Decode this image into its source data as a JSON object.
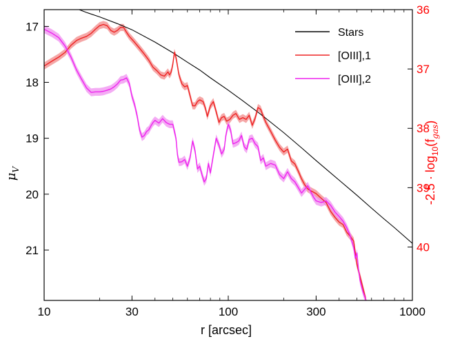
{
  "chart_data": {
    "type": "line",
    "xlabel": "r [arcsec]",
    "x_scale": "log",
    "xlim": [
      10,
      1000
    ],
    "x_ticks": [
      10,
      30,
      100,
      300,
      1000
    ],
    "x_tick_labels": [
      "10",
      "30",
      "100",
      "300",
      "1000"
    ],
    "ylabel_left_main": "μ",
    "ylabel_left_sub": "V",
    "ylim_left": [
      16.7,
      21.9
    ],
    "y_left_inverted": true,
    "y_left_ticks": [
      17,
      18,
      19,
      20,
      21
    ],
    "ylabel_right_prefix": "-2.5 · log",
    "ylabel_right_sub1": "10",
    "ylabel_right_mid": "(f",
    "ylabel_right_sub2": "gas",
    "ylabel_right_suffix": ")",
    "ylim_right": [
      36,
      40.9
    ],
    "y_right_inverted": true,
    "y_right_ticks": [
      36,
      37,
      38,
      39,
      40
    ],
    "y_right_color": "#ff0000",
    "legend_position": "upper-right",
    "series": [
      {
        "name": "Stars",
        "color": "#000000",
        "axis": "left",
        "band": false,
        "points": [
          [
            15.5,
            16.7
          ],
          [
            17,
            16.75
          ],
          [
            20,
            16.83
          ],
          [
            25,
            16.95
          ],
          [
            30,
            17.06
          ],
          [
            40,
            17.28
          ],
          [
            50,
            17.47
          ],
          [
            60,
            17.64
          ],
          [
            70,
            17.78
          ],
          [
            80,
            17.92
          ],
          [
            100,
            18.14
          ],
          [
            120,
            18.33
          ],
          [
            150,
            18.57
          ],
          [
            200,
            18.9
          ],
          [
            250,
            19.17
          ],
          [
            300,
            19.4
          ],
          [
            400,
            19.75
          ],
          [
            500,
            20.02
          ],
          [
            600,
            20.25
          ],
          [
            700,
            20.44
          ],
          [
            800,
            20.6
          ],
          [
            1000,
            20.88
          ]
        ]
      },
      {
        "name": "[OIII],1",
        "color": "#ee2222",
        "band_color": "#f28a8a",
        "axis": "right",
        "band": true,
        "band_half_width": 0.06,
        "points": [
          [
            10,
            36.95
          ],
          [
            11,
            36.87
          ],
          [
            12,
            36.8
          ],
          [
            13,
            36.72
          ],
          [
            14,
            36.6
          ],
          [
            15,
            36.52
          ],
          [
            16,
            36.48
          ],
          [
            17,
            36.45
          ],
          [
            18,
            36.4
          ],
          [
            19,
            36.33
          ],
          [
            20,
            36.27
          ],
          [
            21,
            36.25
          ],
          [
            22,
            36.27
          ],
          [
            23,
            36.35
          ],
          [
            24,
            36.38
          ],
          [
            25,
            36.35
          ],
          [
            26,
            36.3
          ],
          [
            27,
            36.3
          ],
          [
            28,
            36.38
          ],
          [
            29,
            36.45
          ],
          [
            30,
            36.5
          ],
          [
            31,
            36.55
          ],
          [
            33,
            36.65
          ],
          [
            35,
            36.75
          ],
          [
            37,
            36.85
          ],
          [
            39,
            36.97
          ],
          [
            41,
            37.03
          ],
          [
            43,
            37.1
          ],
          [
            45,
            37.12
          ],
          [
            47,
            37.05
          ],
          [
            48,
            37.1
          ],
          [
            49,
            37.05
          ],
          [
            50,
            36.92
          ],
          [
            51,
            36.72
          ],
          [
            52,
            36.8
          ],
          [
            54,
            37.1
          ],
          [
            56,
            37.25
          ],
          [
            58,
            37.3
          ],
          [
            60,
            37.28
          ],
          [
            62,
            37.45
          ],
          [
            64,
            37.62
          ],
          [
            66,
            37.62
          ],
          [
            68,
            37.55
          ],
          [
            70,
            37.52
          ],
          [
            73,
            37.55
          ],
          [
            75,
            37.65
          ],
          [
            77,
            37.8
          ],
          [
            80,
            37.62
          ],
          [
            83,
            37.55
          ],
          [
            86,
            37.72
          ],
          [
            89,
            37.9
          ],
          [
            92,
            37.82
          ],
          [
            95,
            37.8
          ],
          [
            98,
            37.88
          ],
          [
            102,
            37.85
          ],
          [
            106,
            37.78
          ],
          [
            110,
            37.75
          ],
          [
            115,
            37.85
          ],
          [
            120,
            37.82
          ],
          [
            125,
            37.85
          ],
          [
            130,
            37.78
          ],
          [
            135,
            37.95
          ],
          [
            140,
            37.83
          ],
          [
            145,
            37.65
          ],
          [
            150,
            37.68
          ],
          [
            155,
            37.8
          ],
          [
            160,
            37.9
          ],
          [
            170,
            38.05
          ],
          [
            180,
            38.2
          ],
          [
            190,
            38.32
          ],
          [
            200,
            38.4
          ],
          [
            210,
            38.35
          ],
          [
            220,
            38.55
          ],
          [
            230,
            38.6
          ],
          [
            240,
            38.72
          ],
          [
            250,
            38.85
          ],
          [
            260,
            38.95
          ],
          [
            270,
            39.02
          ],
          [
            280,
            39.05
          ],
          [
            300,
            39.1
          ],
          [
            320,
            39.18
          ],
          [
            340,
            39.25
          ],
          [
            360,
            39.4
          ],
          [
            380,
            39.5
          ],
          [
            400,
            39.58
          ],
          [
            420,
            39.62
          ],
          [
            440,
            39.75
          ],
          [
            460,
            39.82
          ],
          [
            480,
            39.9
          ],
          [
            490,
            40.1
          ],
          [
            500,
            40.3
          ],
          [
            510,
            40.4
          ],
          [
            520,
            40.5
          ],
          [
            540,
            40.7
          ],
          [
            560,
            40.9
          ]
        ]
      },
      {
        "name": "[OIII],2",
        "color": "#ee22ee",
        "band_color": "#f090f0",
        "axis": "left",
        "band": true,
        "band_half_width": 0.07,
        "points": [
          [
            10,
            17.05
          ],
          [
            11,
            17.12
          ],
          [
            12,
            17.2
          ],
          [
            13,
            17.35
          ],
          [
            14,
            17.55
          ],
          [
            15,
            17.78
          ],
          [
            16,
            17.95
          ],
          [
            17,
            18.1
          ],
          [
            18,
            18.18
          ],
          [
            19,
            18.17
          ],
          [
            20,
            18.17
          ],
          [
            21,
            18.16
          ],
          [
            22,
            18.14
          ],
          [
            23,
            18.12
          ],
          [
            24,
            18.08
          ],
          [
            25,
            18.03
          ],
          [
            26,
            17.96
          ],
          [
            27,
            17.95
          ],
          [
            28,
            17.92
          ],
          [
            29,
            18.02
          ],
          [
            30,
            18.25
          ],
          [
            31,
            18.4
          ],
          [
            32,
            18.6
          ],
          [
            33,
            18.85
          ],
          [
            34,
            18.98
          ],
          [
            35,
            18.95
          ],
          [
            36,
            18.88
          ],
          [
            37,
            18.85
          ],
          [
            38,
            18.78
          ],
          [
            39,
            18.72
          ],
          [
            40,
            18.68
          ],
          [
            42,
            18.73
          ],
          [
            44,
            18.65
          ],
          [
            46,
            18.72
          ],
          [
            48,
            18.75
          ],
          [
            50,
            18.75
          ],
          [
            52,
            19.0
          ],
          [
            53,
            19.3
          ],
          [
            54,
            19.43
          ],
          [
            56,
            19.42
          ],
          [
            58,
            19.38
          ],
          [
            60,
            19.5
          ],
          [
            62,
            19.35
          ],
          [
            64,
            19.05
          ],
          [
            66,
            19.22
          ],
          [
            68,
            19.55
          ],
          [
            70,
            19.5
          ],
          [
            72,
            19.65
          ],
          [
            74,
            19.78
          ],
          [
            76,
            19.72
          ],
          [
            78,
            19.45
          ],
          [
            80,
            19.62
          ],
          [
            83,
            19.3
          ],
          [
            86,
            19.0
          ],
          [
            89,
            19.12
          ],
          [
            92,
            19.28
          ],
          [
            95,
            19.2
          ],
          [
            97,
            18.95
          ],
          [
            100,
            18.75
          ],
          [
            103,
            18.85
          ],
          [
            106,
            19.1
          ],
          [
            110,
            19.08
          ],
          [
            114,
            19.05
          ],
          [
            118,
            18.95
          ],
          [
            122,
            19.15
          ],
          [
            126,
            19.2
          ],
          [
            130,
            19.02
          ],
          [
            135,
            19.0
          ],
          [
            140,
            19.1
          ],
          [
            145,
            19.15
          ],
          [
            150,
            19.4
          ],
          [
            155,
            19.35
          ],
          [
            160,
            19.5
          ],
          [
            170,
            19.45
          ],
          [
            180,
            19.48
          ],
          [
            190,
            19.65
          ],
          [
            200,
            19.72
          ],
          [
            210,
            19.6
          ],
          [
            220,
            19.72
          ],
          [
            230,
            19.78
          ],
          [
            240,
            19.88
          ],
          [
            250,
            19.98
          ],
          [
            270,
            19.85
          ],
          [
            280,
            19.95
          ],
          [
            290,
            20.05
          ],
          [
            300,
            20.12
          ],
          [
            320,
            20.15
          ],
          [
            340,
            20.12
          ],
          [
            360,
            20.2
          ],
          [
            380,
            20.32
          ],
          [
            400,
            20.4
          ],
          [
            420,
            20.48
          ],
          [
            440,
            20.6
          ],
          [
            460,
            20.75
          ],
          [
            480,
            20.95
          ],
          [
            490,
            21.15
          ],
          [
            500,
            21.05
          ],
          [
            510,
            21.35
          ],
          [
            520,
            21.55
          ],
          [
            540,
            21.75
          ],
          [
            560,
            21.9
          ]
        ]
      }
    ]
  }
}
